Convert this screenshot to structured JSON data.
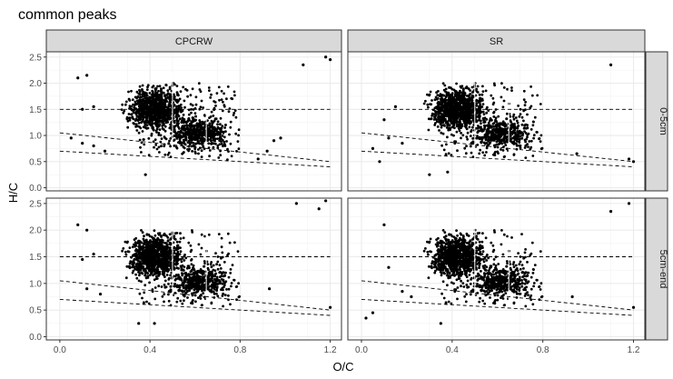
{
  "chart_data": {
    "type": "scatter",
    "title": "common peaks",
    "xlabel": "O/C",
    "ylabel": "H/C",
    "xlim": [
      -0.06,
      1.25
    ],
    "ylim": [
      -0.06,
      2.6
    ],
    "x_ticks": [
      0.0,
      0.4,
      0.8,
      1.2
    ],
    "x_tick_labels": [
      "0.0",
      "0.4",
      "0.8",
      "1.2"
    ],
    "y_ticks": [
      0.0,
      0.5,
      1.0,
      1.5,
      2.0,
      2.5
    ],
    "y_tick_labels": [
      "0.0",
      "0.5",
      "1.0",
      "1.5",
      "2.0",
      "2.5"
    ],
    "grid": true,
    "facet_columns": [
      "CPCRW",
      "SR"
    ],
    "facet_rows": [
      "0-5cm",
      "5cm-end"
    ],
    "point_color": "#000000",
    "reference_lines": [
      {
        "style": "dashed",
        "x": [
          0.0,
          1.2
        ],
        "y": [
          1.5,
          1.5
        ]
      },
      {
        "style": "dashed",
        "x": [
          0.0,
          1.2
        ],
        "y": [
          1.05,
          0.5
        ]
      },
      {
        "style": "dashed",
        "x": [
          0.0,
          1.2
        ],
        "y": [
          0.7,
          0.4
        ]
      }
    ],
    "panels": [
      {
        "col": "CPCRW",
        "row": "0-5cm",
        "outliers": [
          [
            0.08,
            2.1
          ],
          [
            0.12,
            2.15
          ],
          [
            0.1,
            1.5
          ],
          [
            0.15,
            1.55
          ],
          [
            0.05,
            0.95
          ],
          [
            0.1,
            0.85
          ],
          [
            0.15,
            0.8
          ],
          [
            0.2,
            0.7
          ],
          [
            0.38,
            0.25
          ],
          [
            0.88,
            0.55
          ],
          [
            0.98,
            0.95
          ],
          [
            1.08,
            2.35
          ],
          [
            1.18,
            2.5
          ],
          [
            1.2,
            2.45
          ],
          [
            0.95,
            0.9
          ],
          [
            0.92,
            0.7
          ]
        ]
      },
      {
        "col": "SR",
        "row": "0-5cm",
        "outliers": [
          [
            0.05,
            0.75
          ],
          [
            0.08,
            0.5
          ],
          [
            0.1,
            1.3
          ],
          [
            0.15,
            1.55
          ],
          [
            0.12,
            0.95
          ],
          [
            0.18,
            0.85
          ],
          [
            0.3,
            0.25
          ],
          [
            0.38,
            0.3
          ],
          [
            0.95,
            0.65
          ],
          [
            1.1,
            2.35
          ],
          [
            1.18,
            0.55
          ],
          [
            1.2,
            0.5
          ]
        ]
      },
      {
        "col": "CPCRW",
        "row": "5cm-end",
        "outliers": [
          [
            0.08,
            2.1
          ],
          [
            0.12,
            2.0
          ],
          [
            0.1,
            1.45
          ],
          [
            0.15,
            1.55
          ],
          [
            0.12,
            0.9
          ],
          [
            0.18,
            0.8
          ],
          [
            0.35,
            0.25
          ],
          [
            0.42,
            0.25
          ],
          [
            0.93,
            0.9
          ],
          [
            1.05,
            2.5
          ],
          [
            1.15,
            2.4
          ],
          [
            1.18,
            2.55
          ],
          [
            1.2,
            0.55
          ]
        ]
      },
      {
        "col": "SR",
        "row": "5cm-end",
        "outliers": [
          [
            0.02,
            0.35
          ],
          [
            0.05,
            0.45
          ],
          [
            0.1,
            2.1
          ],
          [
            0.12,
            1.3
          ],
          [
            0.18,
            0.85
          ],
          [
            0.22,
            0.75
          ],
          [
            0.35,
            0.25
          ],
          [
            0.93,
            0.75
          ],
          [
            1.1,
            2.35
          ],
          [
            1.18,
            2.5
          ],
          [
            1.2,
            0.55
          ]
        ]
      }
    ]
  }
}
